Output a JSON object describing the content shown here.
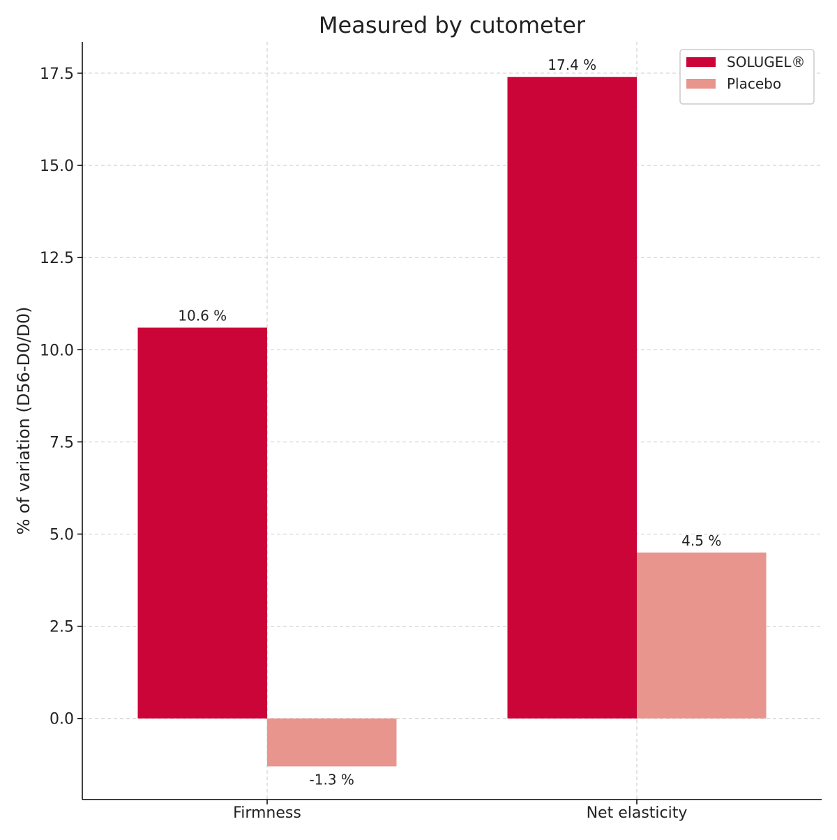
{
  "chart_data": {
    "type": "bar",
    "title": "Measured by cutometer",
    "xlabel": "",
    "ylabel": "% of variation (D56-D0/D0)",
    "categories": [
      "Firmness",
      "Net elasticity"
    ],
    "series": [
      {
        "name": "SOLUGEL®",
        "color": "#cc0538",
        "values": [
          10.6,
          17.4
        ],
        "labels": [
          "10.6 %",
          "17.4 %"
        ]
      },
      {
        "name": "Placebo",
        "color": "#e8958e",
        "values": [
          -1.3,
          4.5
        ],
        "labels": [
          "-1.3 %",
          "4.5 %"
        ]
      }
    ],
    "ylim": [
      -2.2,
      18.35
    ],
    "yticks": [
      0.0,
      2.5,
      5.0,
      7.5,
      10.0,
      12.5,
      15.0,
      17.5
    ],
    "ytick_labels": [
      "0.0",
      "2.5",
      "5.0",
      "7.5",
      "10.0",
      "12.5",
      "15.0",
      "17.5"
    ],
    "grid": true,
    "legend_position": "top-right"
  }
}
